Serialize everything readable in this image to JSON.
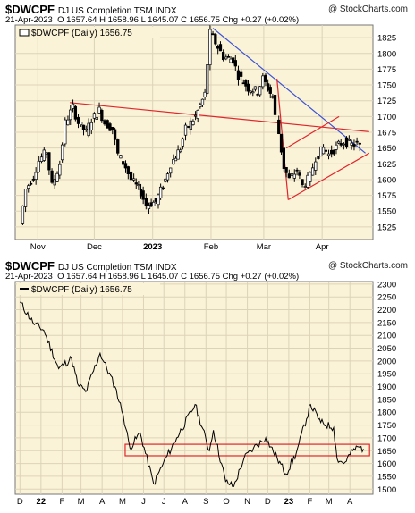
{
  "header": {
    "symbol": "$DWCPF",
    "name": "DJ US Completion TSM INDX",
    "date": "21-Apr-2023",
    "quote_line": "O 1657.64  H 1658.96  L 1645.07  C 1656.75  Chg +0.27 (+0.02%)",
    "brand": "@ StockCharts.com",
    "legend": "$DWCPF (Daily) 1656.75"
  },
  "colors": {
    "plot_bg": "#fbf3d8",
    "up_candle": "#ffffff",
    "down_candle": "#000000",
    "trendline_red": "#e0262b",
    "trendline_blue": "#3a52d6",
    "price_line": "#000000",
    "grid": "#dcd3b8"
  },
  "chart_data": [
    {
      "type": "candlestick",
      "legend": "$DWCPF (Daily) 1656.75",
      "x_labels": [
        "Nov",
        "Dec",
        "2023",
        "Feb",
        "Mar",
        "Apr"
      ],
      "y_ticks": [
        1525,
        1550,
        1575,
        1600,
        1625,
        1650,
        1675,
        1700,
        1725,
        1750,
        1775,
        1800,
        1825
      ],
      "ylim": [
        1505,
        1845
      ],
      "last_close": 1656.75,
      "series": [
        {
          "date": "2022-10-24",
          "close": 1530
        },
        {
          "date": "2022-10-27",
          "close": 1585
        },
        {
          "date": "2022-10-31",
          "close": 1605
        },
        {
          "date": "2022-11-03",
          "close": 1630
        },
        {
          "date": "2022-11-07",
          "close": 1645
        },
        {
          "date": "2022-11-10",
          "close": 1590
        },
        {
          "date": "2022-11-14",
          "close": 1625
        },
        {
          "date": "2022-11-17",
          "close": 1690
        },
        {
          "date": "2022-11-21",
          "close": 1715
        },
        {
          "date": "2022-11-24",
          "close": 1690
        },
        {
          "date": "2022-11-28",
          "close": 1675
        },
        {
          "date": "2022-12-01",
          "close": 1695
        },
        {
          "date": "2022-12-05",
          "close": 1710
        },
        {
          "date": "2022-12-08",
          "close": 1690
        },
        {
          "date": "2022-12-12",
          "close": 1680
        },
        {
          "date": "2022-12-15",
          "close": 1640
        },
        {
          "date": "2022-12-19",
          "close": 1620
        },
        {
          "date": "2022-12-22",
          "close": 1600
        },
        {
          "date": "2022-12-27",
          "close": 1580
        },
        {
          "date": "2022-12-30",
          "close": 1560
        },
        {
          "date": "2023-01-04",
          "close": 1565
        },
        {
          "date": "2023-01-09",
          "close": 1600
        },
        {
          "date": "2023-01-12",
          "close": 1625
        },
        {
          "date": "2023-01-17",
          "close": 1650
        },
        {
          "date": "2023-01-20",
          "close": 1680
        },
        {
          "date": "2023-01-25",
          "close": 1700
        },
        {
          "date": "2023-01-30",
          "close": 1735
        },
        {
          "date": "2023-02-02",
          "close": 1832
        },
        {
          "date": "2023-02-06",
          "close": 1810
        },
        {
          "date": "2023-02-09",
          "close": 1795
        },
        {
          "date": "2023-02-14",
          "close": 1790
        },
        {
          "date": "2023-02-17",
          "close": 1765
        },
        {
          "date": "2023-02-22",
          "close": 1745
        },
        {
          "date": "2023-02-27",
          "close": 1740
        },
        {
          "date": "2023-03-02",
          "close": 1760
        },
        {
          "date": "2023-03-07",
          "close": 1730
        },
        {
          "date": "2023-03-09",
          "close": 1700
        },
        {
          "date": "2023-03-13",
          "close": 1620
        },
        {
          "date": "2023-03-16",
          "close": 1600
        },
        {
          "date": "2023-03-20",
          "close": 1615
        },
        {
          "date": "2023-03-23",
          "close": 1590
        },
        {
          "date": "2023-03-27",
          "close": 1605
        },
        {
          "date": "2023-03-30",
          "close": 1635
        },
        {
          "date": "2023-04-03",
          "close": 1650
        },
        {
          "date": "2023-04-06",
          "close": 1640
        },
        {
          "date": "2023-04-11",
          "close": 1655
        },
        {
          "date": "2023-04-14",
          "close": 1660
        },
        {
          "date": "2023-04-18",
          "close": 1655
        },
        {
          "date": "2023-04-21",
          "close": 1656.75
        }
      ],
      "trendlines": [
        {
          "color": "red",
          "from": {
            "date": "2022-11-18",
            "price": 1722
          },
          "to": {
            "date": "2023-04-26",
            "price": 1676
          }
        },
        {
          "color": "blue",
          "from": {
            "date": "2023-02-02",
            "price": 1840
          },
          "to": {
            "date": "2023-04-24",
            "price": 1642
          }
        },
        {
          "color": "red",
          "from": {
            "date": "2023-03-08",
            "price": 1760
          },
          "to": {
            "date": "2023-03-14",
            "price": 1568
          }
        },
        {
          "color": "red",
          "from": {
            "date": "2023-03-14",
            "price": 1568
          },
          "to": {
            "date": "2023-04-26",
            "price": 1642
          }
        },
        {
          "color": "red",
          "from": {
            "date": "2023-03-13",
            "price": 1650
          },
          "to": {
            "date": "2023-04-10",
            "price": 1700
          }
        }
      ]
    },
    {
      "type": "line",
      "legend": "$DWCPF (Daily) 1656.75",
      "x_labels": [
        "D",
        "22",
        "F",
        "M",
        "A",
        "M",
        "J",
        "J",
        "A",
        "S",
        "O",
        "N",
        "D",
        "23",
        "F",
        "M",
        "A"
      ],
      "y_ticks": [
        1500,
        1550,
        1600,
        1650,
        1700,
        1750,
        1800,
        1850,
        1900,
        1950,
        2000,
        2050,
        2100,
        2150,
        2200,
        2250,
        2300
      ],
      "ylim": [
        1480,
        2310
      ],
      "last_close": 1656.75,
      "series": [
        {
          "date": "2021-12-01",
          "close": 2230
        },
        {
          "date": "2021-12-20",
          "close": 2150
        },
        {
          "date": "2022-01-05",
          "close": 2120
        },
        {
          "date": "2022-01-27",
          "close": 1970
        },
        {
          "date": "2022-02-15",
          "close": 2010
        },
        {
          "date": "2022-02-24",
          "close": 1910
        },
        {
          "date": "2022-03-08",
          "close": 1880
        },
        {
          "date": "2022-03-29",
          "close": 2030
        },
        {
          "date": "2022-04-20",
          "close": 1900
        },
        {
          "date": "2022-05-02",
          "close": 1790
        },
        {
          "date": "2022-05-12",
          "close": 1660
        },
        {
          "date": "2022-05-27",
          "close": 1720
        },
        {
          "date": "2022-06-16",
          "close": 1520
        },
        {
          "date": "2022-06-30",
          "close": 1600
        },
        {
          "date": "2022-07-20",
          "close": 1700
        },
        {
          "date": "2022-08-16",
          "close": 1830
        },
        {
          "date": "2022-09-06",
          "close": 1650
        },
        {
          "date": "2022-09-12",
          "close": 1730
        },
        {
          "date": "2022-09-30",
          "close": 1530
        },
        {
          "date": "2022-10-12",
          "close": 1510
        },
        {
          "date": "2022-10-27",
          "close": 1620
        },
        {
          "date": "2022-11-10",
          "close": 1660
        },
        {
          "date": "2022-11-28",
          "close": 1700
        },
        {
          "date": "2022-12-15",
          "close": 1620
        },
        {
          "date": "2022-12-28",
          "close": 1560
        },
        {
          "date": "2023-01-12",
          "close": 1640
        },
        {
          "date": "2023-02-02",
          "close": 1830
        },
        {
          "date": "2023-02-17",
          "close": 1760
        },
        {
          "date": "2023-03-08",
          "close": 1740
        },
        {
          "date": "2023-03-13",
          "close": 1620
        },
        {
          "date": "2023-03-23",
          "close": 1600
        },
        {
          "date": "2023-04-05",
          "close": 1650
        },
        {
          "date": "2023-04-14",
          "close": 1665
        },
        {
          "date": "2023-04-21",
          "close": 1656.75
        }
      ],
      "support_box": {
        "from_date": "2022-05-05",
        "to_date": "2023-04-30",
        "low": 1630,
        "high": 1675,
        "color": "red"
      }
    }
  ]
}
